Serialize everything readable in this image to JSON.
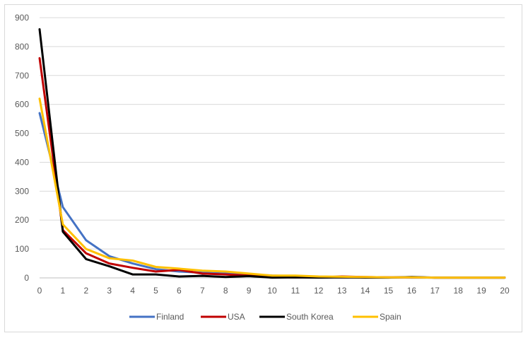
{
  "chart_data": {
    "type": "line",
    "title": "",
    "xlabel": "",
    "ylabel": "",
    "x": [
      0,
      1,
      2,
      3,
      4,
      5,
      6,
      7,
      8,
      9,
      10,
      11,
      12,
      13,
      14,
      15,
      16,
      17,
      18,
      19,
      20
    ],
    "xlim": [
      0,
      20
    ],
    "ylim": [
      0,
      900
    ],
    "y_ticks": [
      0,
      100,
      200,
      300,
      400,
      500,
      600,
      700,
      800,
      900
    ],
    "grid": "horizontal",
    "legend_position": "bottom",
    "series": [
      {
        "name": "Finland",
        "color": "#4472C4",
        "values": [
          570,
          245,
          130,
          75,
          50,
          30,
          22,
          18,
          15,
          12,
          8,
          6,
          4,
          3,
          2,
          2,
          1,
          1,
          1,
          1,
          1
        ]
      },
      {
        "name": "USA",
        "color": "#C00000",
        "values": [
          760,
          165,
          85,
          50,
          35,
          22,
          28,
          15,
          12,
          8,
          3,
          2,
          2,
          5,
          3,
          2,
          2,
          1,
          1,
          1,
          1
        ]
      },
      {
        "name": "South Korea",
        "color": "#000000",
        "values": [
          860,
          160,
          65,
          40,
          12,
          12,
          5,
          7,
          3,
          6,
          1,
          2,
          1,
          2,
          1,
          1,
          3,
          1,
          1,
          1,
          1
        ]
      },
      {
        "name": "Spain",
        "color": "#FFC000",
        "values": [
          620,
          185,
          100,
          68,
          60,
          38,
          32,
          25,
          22,
          15,
          8,
          8,
          5,
          4,
          3,
          2,
          2,
          1,
          1,
          1,
          1
        ]
      }
    ]
  }
}
